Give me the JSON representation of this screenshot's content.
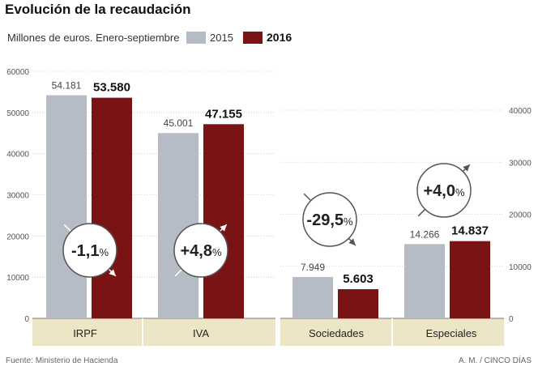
{
  "title": "Evolución de la recaudación",
  "subtitle": "Millones de euros. Enero-septiembre",
  "legend": [
    {
      "label": "2015",
      "color": "#b5bcc6",
      "bold": false
    },
    {
      "label": "2016",
      "color": "#7a1414",
      "bold": true
    }
  ],
  "source": "Fuente: Ministerio de Hacienda",
  "credit": "A. M. / CINCO DÍAS",
  "chart_data": [
    {
      "type": "bar",
      "categories": [
        "IRPF",
        "IVA"
      ],
      "series": [
        {
          "name": "2015",
          "values": [
            54181,
            45001
          ],
          "labels": [
            "54.181",
            "45.001"
          ],
          "color": "#b5bcc6"
        },
        {
          "name": "2016",
          "values": [
            53580,
            47155
          ],
          "labels": [
            "53.580",
            "47.155"
          ],
          "color": "#7a1414"
        }
      ],
      "changes": [
        {
          "text": "-1,1",
          "unit": "%",
          "direction": "down"
        },
        {
          "text": "+4,8",
          "unit": "%",
          "direction": "up"
        }
      ],
      "ylim": [
        0,
        60000
      ],
      "yticks": [
        "0",
        "10000",
        "20000",
        "30000",
        "40000",
        "50000",
        "60000"
      ],
      "yaxis_side": "left"
    },
    {
      "type": "bar",
      "categories": [
        "Sociedades",
        "Especiales"
      ],
      "series": [
        {
          "name": "2015",
          "values": [
            7949,
            14266
          ],
          "labels": [
            "7.949",
            "14.266"
          ],
          "color": "#b5bcc6"
        },
        {
          "name": "2016",
          "values": [
            5603,
            14837
          ],
          "labels": [
            "5.603",
            "14.837"
          ],
          "color": "#7a1414"
        }
      ],
      "changes": [
        {
          "text": "-29,5",
          "unit": "%",
          "direction": "down"
        },
        {
          "text": "+4,0",
          "unit": "%",
          "direction": "up"
        }
      ],
      "ylim": [
        0,
        40000
      ],
      "yticks": [
        "0",
        "10000",
        "20000",
        "30000",
        "40000"
      ],
      "yaxis_side": "right"
    }
  ]
}
